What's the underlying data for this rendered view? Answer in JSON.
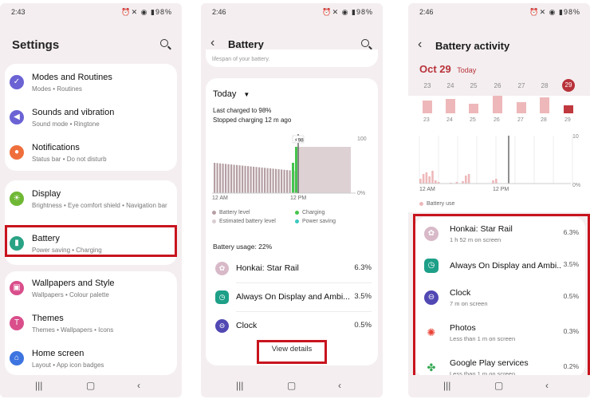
{
  "colors": {
    "accent_red": "#c8141e",
    "battery_bar": "#b59fa4",
    "charging": "#45c44d",
    "power_saving": "#3bc7c1",
    "estimated": "#d9cdd0",
    "usage_bar": "#eeb8ba",
    "usage_bar_active": "#c0393f"
  },
  "settings_screen": {
    "status": {
      "time": "2:43",
      "icons": "⏰✕ ◉ ▮98%"
    },
    "title": "Settings",
    "groups": [
      {
        "items": [
          {
            "name": "Modes and Routines",
            "sub": "Modes  •  Routines",
            "icon": "check-circle-icon",
            "color": "#6b63d4"
          },
          {
            "name": "Sounds and vibration",
            "sub": "Sound mode  •  Ringtone",
            "icon": "volume-icon",
            "color": "#6b63d4"
          },
          {
            "name": "Notifications",
            "sub": "Status bar  •  Do not disturb",
            "icon": "notification-icon",
            "color": "#ef6f3c"
          }
        ]
      },
      {
        "items": [
          {
            "name": "Display",
            "sub": "Brightness  •  Eye comfort shield  •  Navigation bar",
            "icon": "sun-icon",
            "color": "#6fb835"
          },
          {
            "name": "Battery",
            "sub": "Power saving  •  Charging",
            "icon": "battery-icon",
            "color": "#2aa385"
          }
        ]
      },
      {
        "items": [
          {
            "name": "Wallpapers and Style",
            "sub": "Wallpapers  •  Colour palette",
            "icon": "wallpaper-icon",
            "color": "#d94e8b"
          },
          {
            "name": "Themes",
            "sub": "Themes  •  Wallpapers  •  Icons",
            "icon": "themes-icon",
            "color": "#d94e8b"
          },
          {
            "name": "Home screen",
            "sub": "Layout  •  App icon badges",
            "icon": "home-icon",
            "color": "#3d74e0"
          }
        ]
      }
    ]
  },
  "battery_screen": {
    "status": {
      "time": "2:46",
      "icons": "⏰✕ ◉ ▮98%"
    },
    "title": "Battery",
    "top_text": "lifespan of your battery.",
    "period": "Today",
    "last_charged": "Last charged to 98%",
    "stopped": "Stopped charging 12 m ago",
    "chart_marker": "⚡98",
    "y_max": "100",
    "y_min": "0%",
    "x_labels": [
      "12 AM",
      "12 PM"
    ],
    "legend": [
      "Battery level",
      "Charging",
      "Estimated battery level",
      "Power saving"
    ],
    "usage_title": "Battery usage: 22%",
    "apps": [
      {
        "name": "Honkai: Star Rail",
        "pct": "6.3%",
        "icon": "honkai-icon",
        "color": "#d8b9c8"
      },
      {
        "name": "Always On Display and Ambi...",
        "pct": "3.5%",
        "icon": "aod-clock-icon",
        "color": "#1e9f88"
      },
      {
        "name": "Clock",
        "pct": "0.5%",
        "icon": "clock-icon",
        "color": "#5148b3"
      }
    ],
    "view_details": "View details"
  },
  "activity_screen": {
    "status": {
      "time": "2:46",
      "icons": "⏰✕ ◉ ▮98%"
    },
    "title": "Battery activity",
    "date": "Oct 29",
    "today": "Today",
    "days": [
      "23",
      "24",
      "25",
      "26",
      "27",
      "28",
      "29"
    ],
    "y_top": "10",
    "y_bottom": "0%",
    "x_labels": [
      "12 AM",
      "12 PM"
    ],
    "legend": "Battery use",
    "apps": [
      {
        "name": "Honkai: Star Rail",
        "sub": "1 h 52 m on screen",
        "pct": "6.3%",
        "icon": "honkai-icon",
        "color": "#d8b9c8"
      },
      {
        "name": "Always On Display and Ambi...",
        "sub": "",
        "pct": "3.5%",
        "icon": "aod-clock-icon",
        "color": "#1e9f88"
      },
      {
        "name": "Clock",
        "sub": "7 m on screen",
        "pct": "0.5%",
        "icon": "clock-icon",
        "color": "#5148b3"
      },
      {
        "name": "Photos",
        "sub": "Less than 1 m on screen",
        "pct": "0.3%",
        "icon": "photos-icon",
        "color": "#ffffff"
      },
      {
        "name": "Google Play services",
        "sub": "Less than 1 m on screen",
        "pct": "0.2%",
        "icon": "play-services-icon",
        "color": "#ffffff"
      }
    ]
  },
  "nav": {
    "recents": "|||",
    "home": "▢",
    "back": "‹"
  }
}
